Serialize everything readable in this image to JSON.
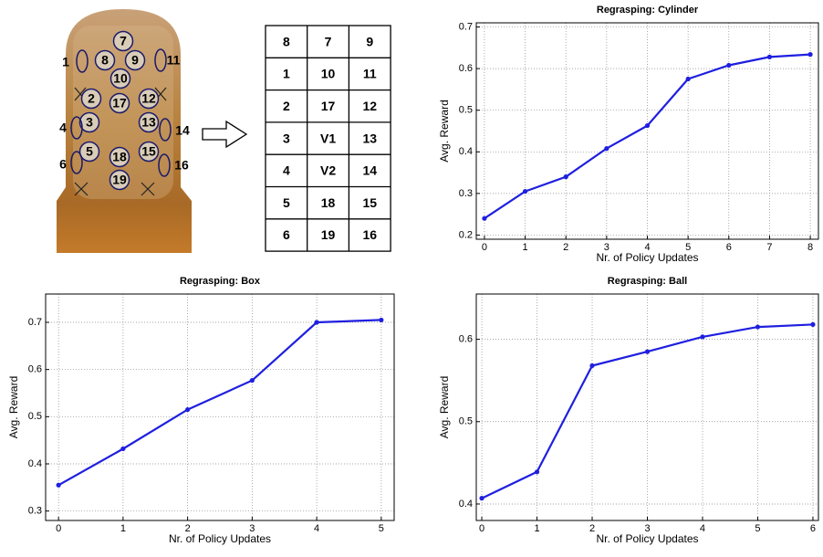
{
  "sensor_labels": [
    "7",
    "8",
    "9",
    "10",
    "2",
    "17",
    "12",
    "3",
    "13",
    "5",
    "18",
    "15",
    "19",
    "1",
    "11",
    "4",
    "14",
    "6",
    "16"
  ],
  "table": {
    "rows": [
      [
        "8",
        "7",
        "9"
      ],
      [
        "1",
        "10",
        "11"
      ],
      [
        "2",
        "17",
        "12"
      ],
      [
        "3",
        "V1",
        "13"
      ],
      [
        "4",
        "V2",
        "14"
      ],
      [
        "5",
        "18",
        "15"
      ],
      [
        "6",
        "19",
        "16"
      ]
    ]
  },
  "chart_data": [
    {
      "type": "line",
      "title": "Regrasping: Cylinder",
      "x_label": "Nr. of Policy Updates",
      "y_label": "Avg. Reward",
      "x": [
        0,
        1,
        2,
        3,
        4,
        5,
        6,
        7,
        8
      ],
      "series": [
        {
          "color": "#1f1fe0",
          "values": [
            0.24,
            0.305,
            0.34,
            0.408,
            0.463,
            0.575,
            0.608,
            0.628,
            0.634
          ]
        }
      ],
      "xlim": [
        -0.2,
        8.2
      ],
      "xticks": [
        0,
        1,
        2,
        3,
        4,
        5,
        6,
        7,
        8
      ],
      "ylim": [
        0.19,
        0.71
      ],
      "yticks": [
        0.2,
        0.3,
        0.4,
        0.5,
        0.6,
        0.7
      ],
      "grid": true
    },
    {
      "type": "line",
      "title": "Regrasping: Box",
      "x_label": "Nr. of Policy Updates",
      "y_label": "Avg. Reward",
      "x": [
        0,
        1,
        2,
        3,
        4,
        5
      ],
      "series": [
        {
          "color": "#1f1fe0",
          "values": [
            0.355,
            0.432,
            0.515,
            0.577,
            0.7,
            0.705
          ]
        }
      ],
      "xlim": [
        -0.2,
        5.2
      ],
      "xticks": [
        0,
        1,
        2,
        3,
        4,
        5
      ],
      "ylim": [
        0.28,
        0.76
      ],
      "yticks": [
        0.3,
        0.4,
        0.5,
        0.6,
        0.7
      ],
      "grid": true
    },
    {
      "type": "line",
      "title": "Regrasping: Ball",
      "x_label": "Nr. of Policy Updates",
      "y_label": "Avg. Reward",
      "x": [
        0,
        1,
        2,
        3,
        4,
        5,
        6
      ],
      "series": [
        {
          "color": "#1f1fe0",
          "values": [
            0.407,
            0.439,
            0.568,
            0.585,
            0.603,
            0.615,
            0.618
          ]
        }
      ],
      "xlim": [
        -0.1,
        6.1
      ],
      "xticks": [
        0,
        1,
        2,
        3,
        4,
        5,
        6
      ],
      "ylim": [
        0.38,
        0.655
      ],
      "yticks": [
        0.4,
        0.5,
        0.6
      ],
      "grid": true
    }
  ]
}
